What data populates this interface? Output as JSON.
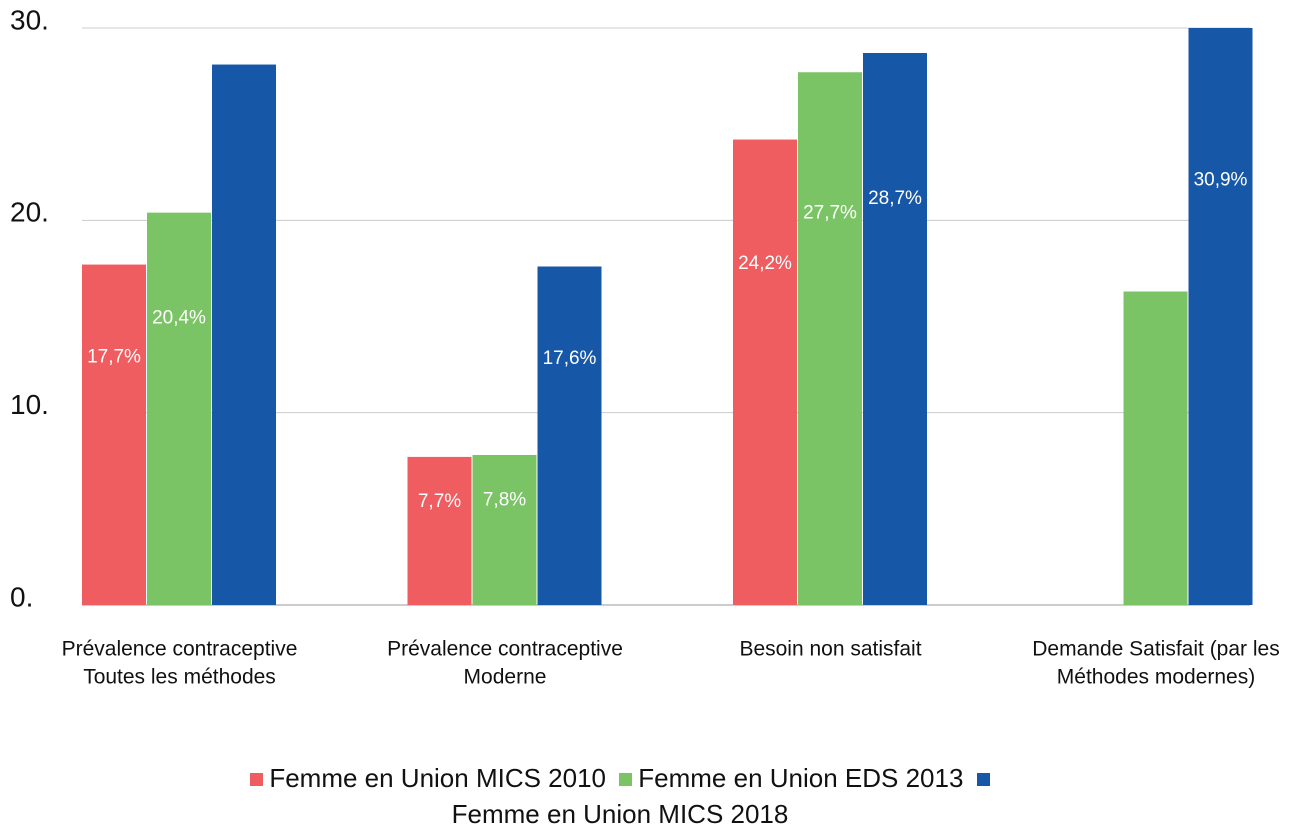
{
  "chart_data": {
    "type": "bar",
    "categories": [
      [
        "Prévalence contraceptive",
        "Toutes les méthodes"
      ],
      [
        "Prévalence contraceptive",
        "Moderne"
      ],
      [
        "Besoin  non satisfait"
      ],
      [
        "Demande Satisfait (par les",
        "Méthodes modernes)"
      ]
    ],
    "series": [
      {
        "name": "Femme en Union MICS 2010",
        "color": "#ef5d60",
        "values": [
          17.7,
          7.7,
          24.2,
          null
        ],
        "value_labels": [
          "17,7%",
          "7,7%",
          "24,2%",
          null
        ]
      },
      {
        "name": "Femme en Union EDS 2013",
        "color": "#7bc465",
        "values": [
          20.4,
          7.8,
          27.7,
          16.3
        ],
        "value_labels": [
          "20,4%",
          "7,8%",
          "27,7%",
          null
        ]
      },
      {
        "name": "Femme en Union MICS 2018",
        "color": "#1757a8",
        "values": [
          28.1,
          17.6,
          28.7,
          30.9
        ],
        "value_labels": [
          null,
          "17,6%",
          "28,7%",
          "30,9%"
        ]
      }
    ],
    "ylim": [
      0,
      30
    ],
    "yticks": [
      {
        "value": 0,
        "label": "0."
      },
      {
        "value": 10,
        "label": "10."
      },
      {
        "value": 20,
        "label": "20."
      },
      {
        "value": 30,
        "label": "30."
      }
    ],
    "grid": true
  }
}
